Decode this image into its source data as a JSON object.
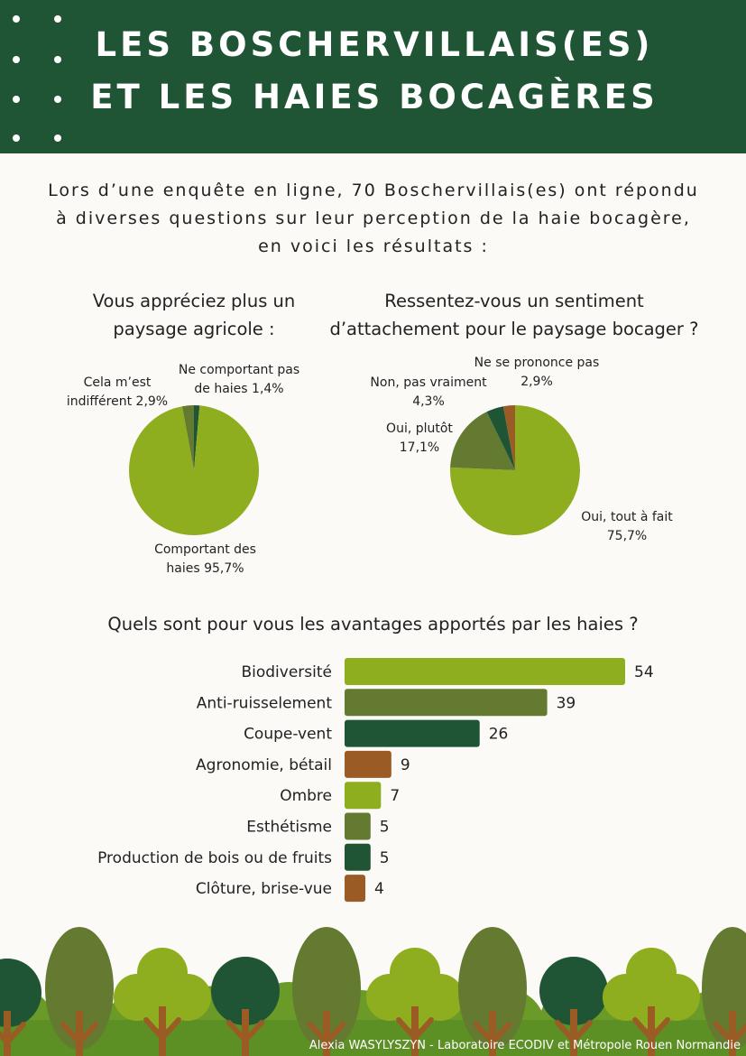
{
  "header": {
    "title_line1": "LES BOSCHERVILLAIS(ES)",
    "title_line2": "ET LES HAIES BOCAGÈRES"
  },
  "intro": {
    "line1": "Lors d’une enquête en ligne, 70 Boschervillais(es) ont répondu",
    "line2": "à diverses questions sur leur perception de la haie bocagère,",
    "line3": "en voici les résultats :"
  },
  "colors": {
    "header_bg": "#1f5535",
    "light_green": "#8fae1f",
    "olive": "#637a30",
    "dark_green": "#1f5535",
    "brown": "#9a5b25"
  },
  "chart_data": [
    {
      "type": "pie",
      "title_line1": "Vous appréciez plus un",
      "title_line2": "paysage agricole :",
      "slices": [
        {
          "label_line1": "Ne comportant pas",
          "label_line2": "de haies 1,4%",
          "value": 1.4,
          "color": "#1f5535"
        },
        {
          "label_line1": "Comportant des",
          "label_line2": "haies 95,7%",
          "value": 95.7,
          "color": "#8fae1f"
        },
        {
          "label_line1": "Cela m’est",
          "label_line2": "indifférent 2,9%",
          "value": 2.9,
          "color": "#637a30"
        }
      ]
    },
    {
      "type": "pie",
      "title_line1": "Ressentez-vous un sentiment",
      "title_line2": "d’attachement pour le paysage bocager ?",
      "slices": [
        {
          "label_line1": "Oui, tout à fait",
          "label_line2": "75,7%",
          "value": 75.7,
          "color": "#8fae1f"
        },
        {
          "label_line1": "Oui, plutôt",
          "label_line2": "17,1%",
          "value": 17.1,
          "color": "#637a30"
        },
        {
          "label_line1": "Non, pas vraiment",
          "label_line2": "4,3%",
          "value": 4.3,
          "color": "#1f5535"
        },
        {
          "label_line1": "Ne se prononce pas",
          "label_line2": "2,9%",
          "value": 2.9,
          "color": "#9a5b25"
        }
      ]
    },
    {
      "type": "bar",
      "orientation": "horizontal",
      "title": "Quels sont pour vous les avantages apportés par les haies ?",
      "categories": [
        "Biodiversité",
        "Anti-ruisselement",
        "Coupe-vent",
        "Agronomie, bétail",
        "Ombre",
        "Esthétisme",
        "Production de bois ou de fruits",
        "Clôture, brise-vue"
      ],
      "values": [
        54,
        39,
        26,
        9,
        7,
        5,
        5,
        4
      ],
      "colors": [
        "#8fae1f",
        "#637a30",
        "#1f5535",
        "#9a5b25",
        "#8fae1f",
        "#637a30",
        "#1f5535",
        "#9a5b25"
      ]
    }
  ],
  "footer": {
    "credit": "Alexia WASYLYSZYN - Laboratoire ECODIV et Métropole Rouen Normandie"
  }
}
